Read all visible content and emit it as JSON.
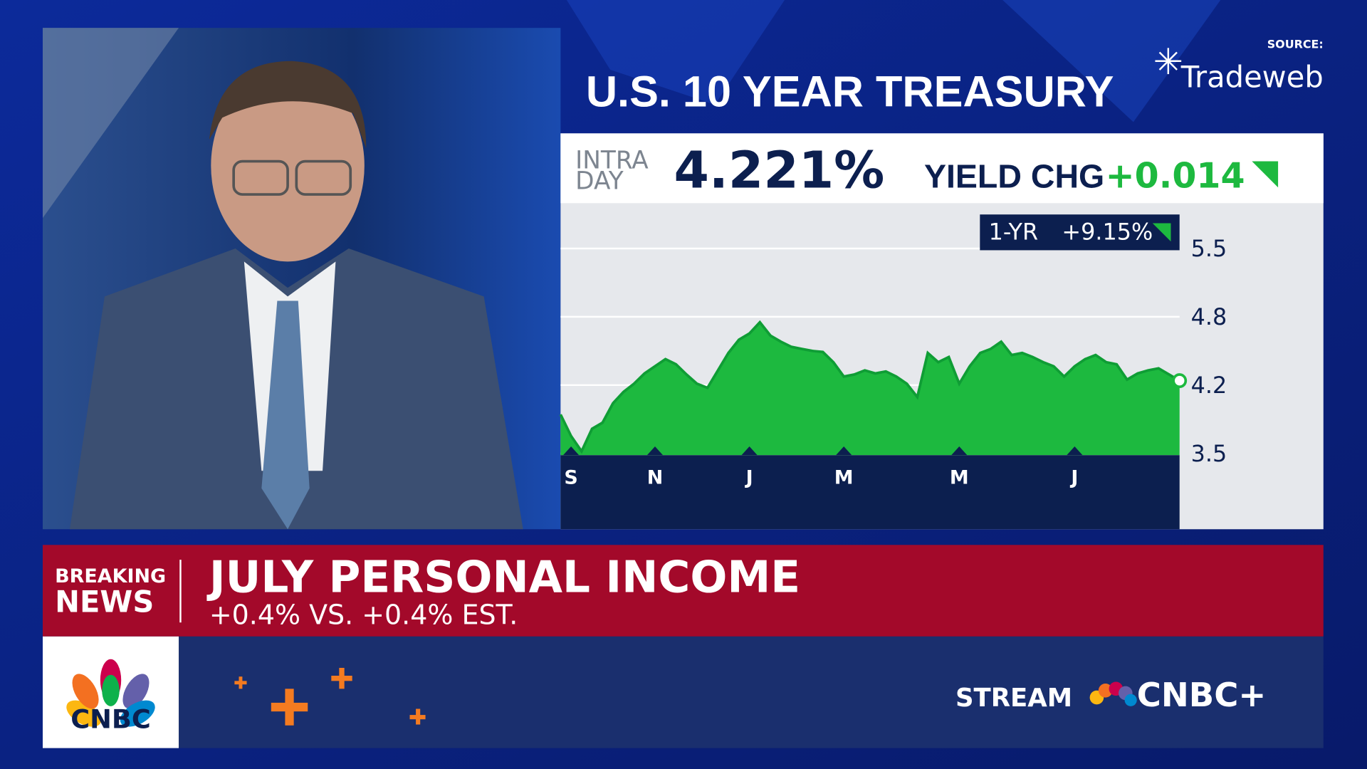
{
  "screen": {
    "title": "U.S. 10 YEAR TREASURY",
    "source_label": "SOURCE:",
    "source": "Tradeweb",
    "intraday_label": [
      "INTRA",
      "DAY"
    ],
    "intraday_value": "4.221%",
    "yield_chg_label": "YIELD CHG",
    "yield_chg_value": "+0.014",
    "one_year_label": "1-YR",
    "one_year_value": "+9.15%",
    "breaking": [
      "BREAKING",
      "NEWS"
    ],
    "headline": "JULY PERSONAL INCOME",
    "subheadline": "+0.4% VS. +0.4% EST.",
    "logo": "CNBC",
    "stream_label": "STREAM",
    "stream_brand": "CNBC+"
  },
  "chart_data": {
    "type": "area",
    "color": "#1db93f",
    "categories": [
      null,
      "S",
      null,
      null,
      null,
      null,
      null,
      null,
      null,
      "N",
      null,
      null,
      null,
      null,
      null,
      null,
      null,
      null,
      "J",
      null,
      null,
      null,
      null,
      null,
      null,
      null,
      null,
      "M",
      null,
      null,
      null,
      null,
      null,
      null,
      null,
      null,
      null,
      null,
      "M",
      null,
      null,
      null,
      null,
      null,
      null,
      null,
      null,
      null,
      null,
      "J",
      null,
      null,
      null,
      null,
      null,
      null,
      null,
      null,
      null,
      null
    ],
    "values": [
      3.88,
      3.67,
      3.52,
      3.74,
      3.8,
      3.99,
      4.1,
      4.18,
      4.28,
      4.35,
      4.42,
      4.37,
      4.27,
      4.18,
      4.14,
      4.31,
      4.48,
      4.61,
      4.67,
      4.78,
      4.65,
      4.59,
      4.54,
      4.52,
      4.5,
      4.49,
      4.39,
      4.25,
      4.27,
      4.31,
      4.28,
      4.3,
      4.25,
      4.18,
      4.05,
      4.48,
      4.39,
      4.44,
      4.18,
      4.35,
      4.48,
      4.52,
      4.59,
      4.46,
      4.48,
      4.44,
      4.39,
      4.35,
      4.25,
      4.35,
      4.42,
      4.46,
      4.39,
      4.37,
      4.22,
      4.28,
      4.31,
      4.33,
      4.27,
      4.21
    ],
    "ylim": [
      3.5,
      5.5
    ],
    "yticks": [
      3.5,
      {
        "value": 4.1667,
        "label": "4.2"
      },
      {
        "value": 4.8333,
        "label": "4.8"
      },
      5.5
    ],
    "grid": true
  }
}
